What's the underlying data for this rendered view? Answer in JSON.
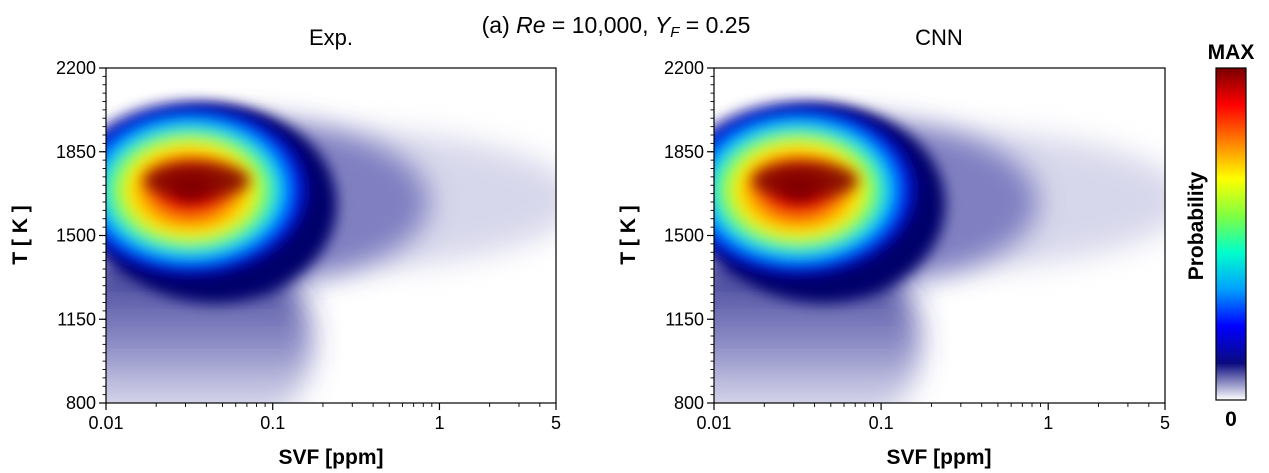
{
  "figure": {
    "super_title": {
      "prefix": "(a) ",
      "re_symbol": "Re",
      "re_text": " = 10,000, ",
      "y_symbol": "Y",
      "y_sub": "F",
      "y_text": " = 0.25"
    }
  },
  "chart_data": [
    {
      "type": "heatmap",
      "title": "Exp.",
      "xlabel": "SVF [ppm]",
      "ylabel": "T [ K ]",
      "xscale": "log",
      "xlim": [
        0.01,
        5
      ],
      "ylim": [
        800,
        2200
      ],
      "xticks": [
        0.01,
        0.1,
        1,
        5
      ],
      "xtick_labels": [
        "0.01",
        "0.1",
        "1",
        "5"
      ],
      "yticks": [
        800,
        1150,
        1500,
        1850,
        2200
      ],
      "ytick_labels": [
        "800",
        "1150",
        "1500",
        "1850",
        "2200"
      ],
      "peak": {
        "svf": 0.035,
        "T": 1730
      },
      "colormap": "jet"
    },
    {
      "type": "heatmap",
      "title": "CNN",
      "xlabel": "SVF [ppm]",
      "ylabel": "T [ K ]",
      "xscale": "log",
      "xlim": [
        0.01,
        5
      ],
      "ylim": [
        800,
        2200
      ],
      "xticks": [
        0.01,
        0.1,
        1,
        5
      ],
      "xtick_labels": [
        "0.01",
        "0.1",
        "1",
        "5"
      ],
      "yticks": [
        800,
        1150,
        1500,
        1850,
        2200
      ],
      "ytick_labels": [
        "800",
        "1150",
        "1500",
        "1850",
        "2200"
      ],
      "peak": {
        "svf": 0.035,
        "T": 1730
      },
      "colormap": "jet"
    }
  ],
  "colorbar": {
    "label": "Probability",
    "max_label": "MAX",
    "min_label": "0",
    "stops": [
      "#ffffff",
      "#0a0a80",
      "#0000ff",
      "#00a0ff",
      "#00ffcc",
      "#80ff40",
      "#ffff00",
      "#ff8000",
      "#ff0000",
      "#7a0000"
    ]
  }
}
